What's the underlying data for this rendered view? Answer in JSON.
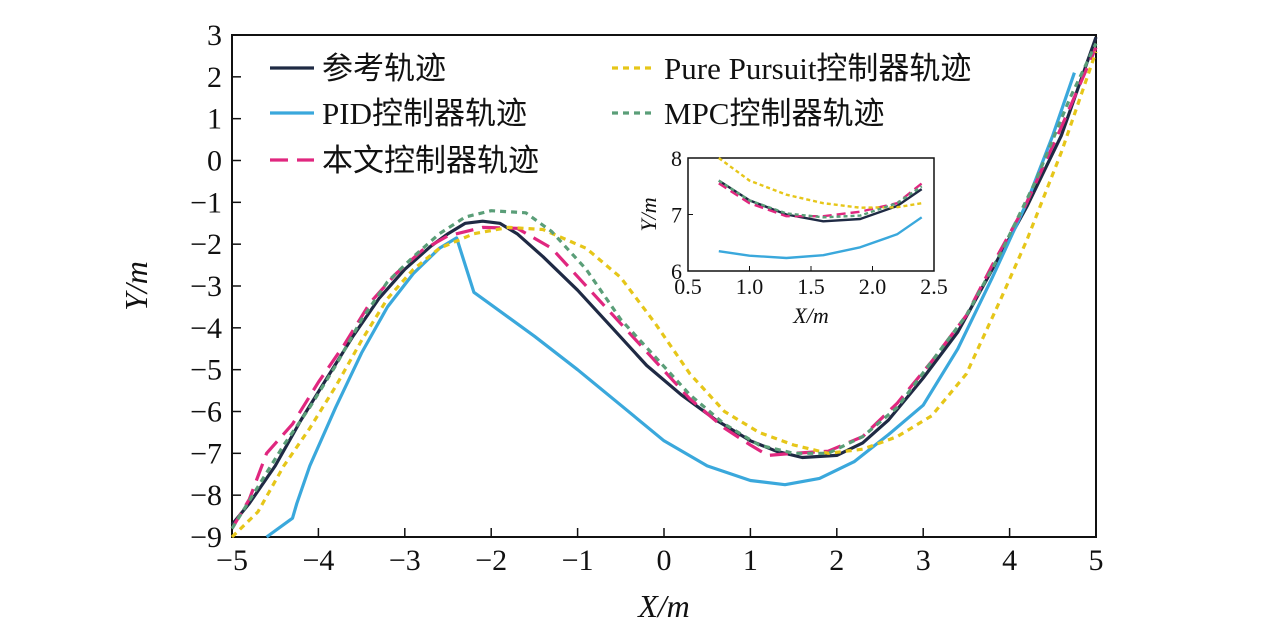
{
  "chart_data": [
    {
      "type": "line",
      "xlabel": "X/m",
      "ylabel": "Y/m",
      "xlim": [
        -5,
        5
      ],
      "ylim": [
        -9,
        3
      ],
      "xticks": [
        "−5",
        "−4",
        "−3",
        "−2",
        "−1",
        "0",
        "1",
        "2",
        "3",
        "4",
        "5"
      ],
      "yticks": [
        "3",
        "2",
        "1",
        "0",
        "−1",
        "−2",
        "−3",
        "−4",
        "−5",
        "−6",
        "−7",
        "−8",
        "−9"
      ],
      "legend_position": "top",
      "series": [
        {
          "name": "参考轨迹",
          "color": "#1f2a44",
          "style": "solid",
          "points": [
            [
              -5,
              -8.7
            ],
            [
              -4.8,
              -8.2
            ],
            [
              -4.5,
              -7.3
            ],
            [
              -4.2,
              -6.2
            ],
            [
              -3.9,
              -5.2
            ],
            [
              -3.6,
              -4.2
            ],
            [
              -3.3,
              -3.3
            ],
            [
              -3.0,
              -2.6
            ],
            [
              -2.7,
              -2.05
            ],
            [
              -2.5,
              -1.75
            ],
            [
              -2.3,
              -1.5
            ],
            [
              -2.1,
              -1.45
            ],
            [
              -1.9,
              -1.5
            ],
            [
              -1.7,
              -1.75
            ],
            [
              -1.4,
              -2.3
            ],
            [
              -1.0,
              -3.1
            ],
            [
              -0.6,
              -4.0
            ],
            [
              -0.2,
              -4.9
            ],
            [
              0.2,
              -5.6
            ],
            [
              0.6,
              -6.2
            ],
            [
              1.0,
              -6.7
            ],
            [
              1.3,
              -6.95
            ],
            [
              1.6,
              -7.1
            ],
            [
              2.0,
              -7.05
            ],
            [
              2.3,
              -6.75
            ],
            [
              2.6,
              -6.2
            ],
            [
              3.0,
              -5.2
            ],
            [
              3.4,
              -4.1
            ],
            [
              3.8,
              -2.6
            ],
            [
              4.2,
              -1.1
            ],
            [
              4.6,
              0.6
            ],
            [
              5.0,
              2.95
            ]
          ]
        },
        {
          "name": "PID控制器轨迹",
          "color": "#3aa8dc",
          "style": "solid",
          "points": [
            [
              -4.6,
              -9.0
            ],
            [
              -4.3,
              -8.55
            ],
            [
              -4.25,
              -8.2
            ],
            [
              -4.1,
              -7.3
            ],
            [
              -3.8,
              -5.9
            ],
            [
              -3.5,
              -4.6
            ],
            [
              -3.2,
              -3.5
            ],
            [
              -2.9,
              -2.7
            ],
            [
              -2.6,
              -2.1
            ],
            [
              -2.4,
              -1.85
            ],
            [
              -2.2,
              -3.15
            ],
            [
              -2.0,
              -3.45
            ],
            [
              -1.5,
              -4.2
            ],
            [
              -1.0,
              -5.0
            ],
            [
              -0.5,
              -5.85
            ],
            [
              0.0,
              -6.7
            ],
            [
              0.5,
              -7.3
            ],
            [
              1.0,
              -7.65
            ],
            [
              1.4,
              -7.75
            ],
            [
              1.8,
              -7.6
            ],
            [
              2.2,
              -7.2
            ],
            [
              2.6,
              -6.55
            ],
            [
              3.0,
              -5.85
            ],
            [
              3.4,
              -4.5
            ],
            [
              3.8,
              -2.8
            ],
            [
              4.2,
              -1.0
            ],
            [
              4.5,
              0.6
            ],
            [
              4.75,
              2.1
            ]
          ]
        },
        {
          "name": "本文控制器轨迹",
          "color": "#e0277f",
          "style": "dashed",
          "points": [
            [
              -5,
              -8.8
            ],
            [
              -4.8,
              -8.1
            ],
            [
              -4.6,
              -7.0
            ],
            [
              -4.3,
              -6.3
            ],
            [
              -4.0,
              -5.3
            ],
            [
              -3.7,
              -4.4
            ],
            [
              -3.4,
              -3.4
            ],
            [
              -3.1,
              -2.7
            ],
            [
              -2.8,
              -2.15
            ],
            [
              -2.5,
              -1.8
            ],
            [
              -2.1,
              -1.6
            ],
            [
              -1.7,
              -1.62
            ],
            [
              -1.3,
              -2.1
            ],
            [
              -0.9,
              -3.0
            ],
            [
              -0.5,
              -3.9
            ],
            [
              -0.1,
              -4.8
            ],
            [
              0.3,
              -5.7
            ],
            [
              0.7,
              -6.4
            ],
            [
              1.0,
              -6.8
            ],
            [
              1.2,
              -7.05
            ],
            [
              1.5,
              -7.0
            ],
            [
              1.9,
              -6.95
            ],
            [
              2.3,
              -6.6
            ],
            [
              2.7,
              -5.8
            ],
            [
              3.1,
              -4.8
            ],
            [
              3.5,
              -3.7
            ],
            [
              3.8,
              -2.5
            ],
            [
              4.2,
              -1.0
            ],
            [
              4.6,
              0.8
            ],
            [
              5.0,
              2.7
            ]
          ]
        },
        {
          "name": "Pure Pursuit控制器轨迹",
          "color": "#e6c619",
          "style": "dotted",
          "points": [
            [
              -5,
              -9.0
            ],
            [
              -4.7,
              -8.4
            ],
            [
              -4.4,
              -7.3
            ],
            [
              -4.1,
              -6.4
            ],
            [
              -3.8,
              -5.4
            ],
            [
              -3.5,
              -4.3
            ],
            [
              -3.2,
              -3.3
            ],
            [
              -2.9,
              -2.6
            ],
            [
              -2.6,
              -2.1
            ],
            [
              -2.2,
              -1.75
            ],
            [
              -1.8,
              -1.6
            ],
            [
              -1.4,
              -1.65
            ],
            [
              -0.9,
              -2.1
            ],
            [
              -0.5,
              -2.8
            ],
            [
              -0.1,
              -3.9
            ],
            [
              0.3,
              -5.1
            ],
            [
              0.7,
              -6.0
            ],
            [
              1.1,
              -6.5
            ],
            [
              1.5,
              -6.8
            ],
            [
              1.9,
              -7.0
            ],
            [
              2.3,
              -6.9
            ],
            [
              2.7,
              -6.6
            ],
            [
              3.1,
              -6.1
            ],
            [
              3.5,
              -5.1
            ],
            [
              3.9,
              -3.3
            ],
            [
              4.2,
              -1.9
            ],
            [
              4.6,
              0.2
            ],
            [
              5.0,
              2.6
            ]
          ]
        },
        {
          "name": "MPC控制器轨迹",
          "color": "#5a9e78",
          "style": "dotted",
          "points": [
            [
              -5,
              -8.8
            ],
            [
              -4.7,
              -7.8
            ],
            [
              -4.4,
              -6.8
            ],
            [
              -4.1,
              -5.9
            ],
            [
              -3.8,
              -4.9
            ],
            [
              -3.5,
              -3.8
            ],
            [
              -3.2,
              -2.9
            ],
            [
              -2.9,
              -2.3
            ],
            [
              -2.6,
              -1.75
            ],
            [
              -2.3,
              -1.35
            ],
            [
              -2.0,
              -1.2
            ],
            [
              -1.6,
              -1.25
            ],
            [
              -1.3,
              -1.7
            ],
            [
              -0.9,
              -2.6
            ],
            [
              -0.5,
              -3.8
            ],
            [
              -0.1,
              -4.7
            ],
            [
              0.3,
              -5.6
            ],
            [
              0.7,
              -6.3
            ],
            [
              1.1,
              -6.8
            ],
            [
              1.5,
              -7.0
            ],
            [
              1.9,
              -7.0
            ],
            [
              2.3,
              -6.6
            ],
            [
              2.7,
              -5.9
            ],
            [
              3.1,
              -4.8
            ],
            [
              3.5,
              -3.7
            ],
            [
              3.9,
              -2.2
            ],
            [
              4.3,
              -0.5
            ],
            [
              4.7,
              1.5
            ],
            [
              5.0,
              2.8
            ]
          ]
        }
      ]
    },
    {
      "type": "line",
      "xlabel": "X/m",
      "ylabel": "Y/m",
      "xlim": [
        0.5,
        2.5
      ],
      "ylim": [
        6,
        8
      ],
      "xticks": [
        "0.5",
        "1.0",
        "1.5",
        "2.0",
        "2.5"
      ],
      "yticks": [
        "8",
        "7",
        "6"
      ],
      "series": [
        {
          "color": "#1f2a44",
          "style": "solid",
          "points": [
            [
              0.75,
              7.6
            ],
            [
              1.0,
              7.25
            ],
            [
              1.3,
              7.0
            ],
            [
              1.6,
              6.88
            ],
            [
              1.9,
              6.92
            ],
            [
              2.2,
              7.15
            ],
            [
              2.4,
              7.45
            ]
          ]
        },
        {
          "color": "#3aa8dc",
          "style": "solid",
          "points": [
            [
              0.75,
              6.35
            ],
            [
              1.0,
              6.27
            ],
            [
              1.3,
              6.23
            ],
            [
              1.6,
              6.28
            ],
            [
              1.9,
              6.42
            ],
            [
              2.2,
              6.65
            ],
            [
              2.4,
              6.95
            ]
          ]
        },
        {
          "color": "#e0277f",
          "style": "dashed",
          "points": [
            [
              0.75,
              7.55
            ],
            [
              1.0,
              7.2
            ],
            [
              1.3,
              6.97
            ],
            [
              1.6,
              6.97
            ],
            [
              1.9,
              7.05
            ],
            [
              2.2,
              7.2
            ],
            [
              2.4,
              7.55
            ]
          ]
        },
        {
          "color": "#e6c619",
          "style": "dotted",
          "points": [
            [
              0.75,
              8.0
            ],
            [
              1.0,
              7.6
            ],
            [
              1.3,
              7.35
            ],
            [
              1.6,
              7.2
            ],
            [
              1.9,
              7.12
            ],
            [
              2.2,
              7.13
            ],
            [
              2.4,
              7.2
            ]
          ]
        },
        {
          "color": "#5a9e78",
          "style": "dotted",
          "points": [
            [
              0.75,
              7.6
            ],
            [
              1.0,
              7.25
            ],
            [
              1.3,
              7.02
            ],
            [
              1.6,
              6.95
            ],
            [
              1.9,
              6.98
            ],
            [
              2.2,
              7.2
            ],
            [
              2.4,
              7.5
            ]
          ]
        }
      ]
    }
  ]
}
